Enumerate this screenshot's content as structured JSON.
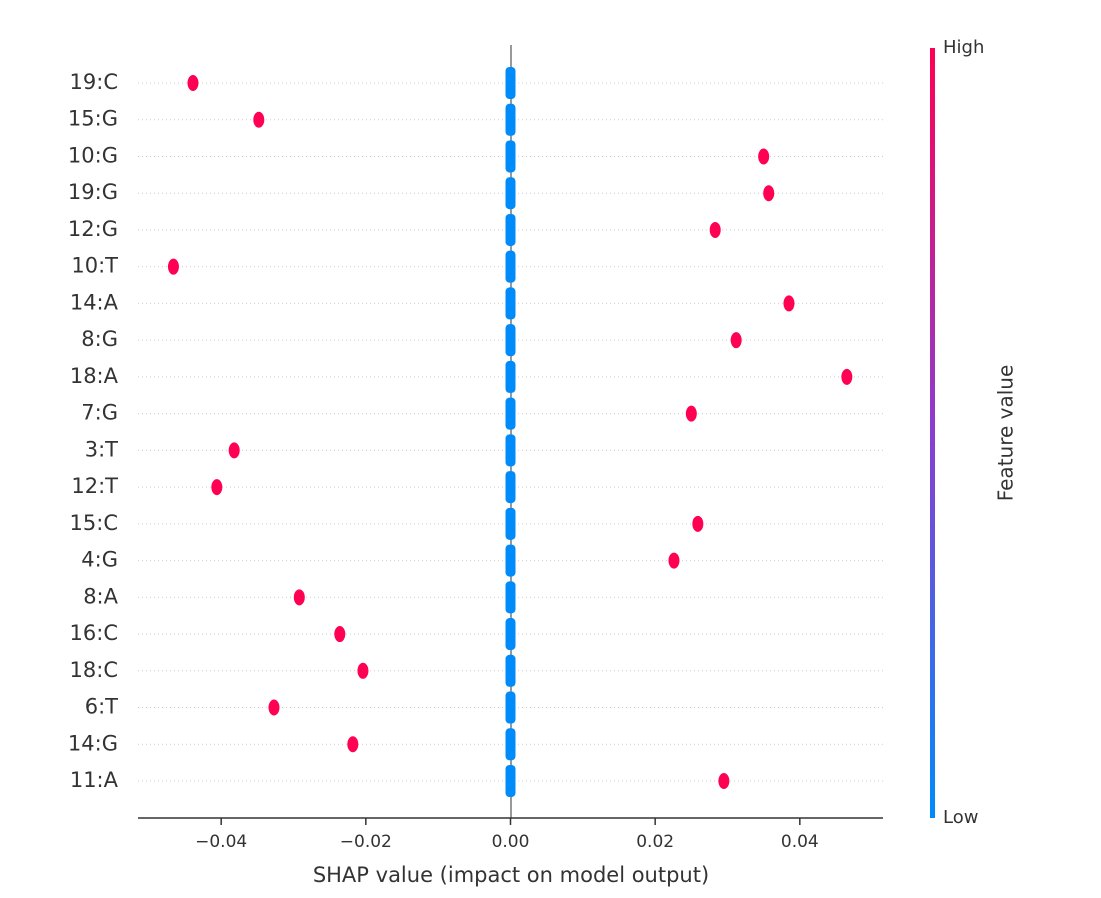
{
  "chart_data": {
    "type": "shap-beeswarm",
    "x_label": "SHAP value (impact on model output)",
    "colorbar_label": "Feature value",
    "categories": [
      "19:C",
      "15:G",
      "10:G",
      "19:G",
      "12:G",
      "10:T",
      "14:A",
      "8:G",
      "18:A",
      "7:G",
      "3:T",
      "12:T",
      "15:C",
      "4:G",
      "8:A",
      "16:C",
      "18:C",
      "6:T",
      "14:G",
      "11:A"
    ],
    "series": [
      {
        "name": "High",
        "color": "#ff0052",
        "values": [
          -0.0439,
          -0.0348,
          0.035,
          0.0357,
          0.0283,
          -0.0466,
          0.0385,
          0.0312,
          0.0465,
          0.025,
          -0.0382,
          -0.0406,
          0.0259,
          0.0226,
          -0.0292,
          -0.0236,
          -0.0204,
          -0.0327,
          -0.0218,
          0.0295
        ]
      },
      {
        "name": "Low",
        "color": "#008bfb",
        "values": [
          0,
          0,
          0,
          0,
          0,
          0,
          0,
          0,
          0,
          0,
          0,
          0,
          0,
          0,
          0,
          0,
          0,
          0,
          0,
          0
        ]
      }
    ],
    "xlim": [
      -0.0515,
      0.0515
    ],
    "xticks": [
      {
        "value": -0.04,
        "label": "−0.04"
      },
      {
        "value": -0.02,
        "label": "−0.02"
      },
      {
        "value": 0,
        "label": "0.00"
      },
      {
        "value": 0.02,
        "label": "0.02"
      },
      {
        "value": 0.04,
        "label": "0.04"
      }
    ]
  }
}
